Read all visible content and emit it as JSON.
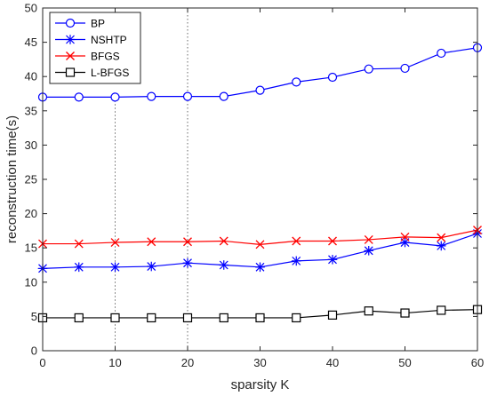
{
  "chart_data": {
    "type": "line",
    "xlabel": "sparsity K",
    "ylabel": "reconstruction time(s)",
    "xlim": [
      0,
      60
    ],
    "ylim": [
      0,
      50
    ],
    "xticks": [
      0,
      10,
      20,
      30,
      40,
      50,
      60
    ],
    "yticks": [
      0,
      5,
      10,
      15,
      20,
      25,
      30,
      35,
      40,
      45,
      50
    ],
    "grid": "dotted vertical lines at x = 10 and x = 20 (partial)",
    "legend_position": "top-left",
    "x": [
      0,
      5,
      10,
      15,
      20,
      25,
      30,
      35,
      40,
      45,
      50,
      55,
      60
    ],
    "series": [
      {
        "name": "BP",
        "color": "#0000ff",
        "marker": "circle",
        "values": [
          37.0,
          37.0,
          37.0,
          37.1,
          37.1,
          37.1,
          38.0,
          39.2,
          39.9,
          41.1,
          41.2,
          43.4,
          44.2
        ]
      },
      {
        "name": "NSHTP",
        "color": "#0000ff",
        "marker": "asterisk",
        "values": [
          12.0,
          12.2,
          12.2,
          12.3,
          12.8,
          12.5,
          12.2,
          13.1,
          13.3,
          14.6,
          15.8,
          15.3,
          17.1
        ]
      },
      {
        "name": "BFGS",
        "color": "#ff0000",
        "marker": "x",
        "values": [
          15.6,
          15.6,
          15.8,
          15.9,
          15.9,
          16.0,
          15.5,
          16.0,
          16.0,
          16.2,
          16.6,
          16.5,
          17.6
        ]
      },
      {
        "name": "L-BFGS",
        "color": "#000000",
        "marker": "square",
        "values": [
          4.8,
          4.8,
          4.8,
          4.8,
          4.8,
          4.8,
          4.8,
          4.8,
          5.2,
          5.8,
          5.5,
          5.9,
          6.0
        ]
      }
    ]
  }
}
